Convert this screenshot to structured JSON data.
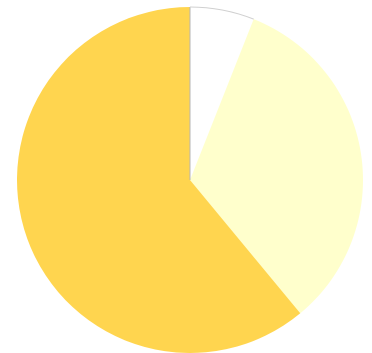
{
  "chart_data": {
    "type": "pie",
    "start_angle": "12 o'clock",
    "direction": "clockwise",
    "slices": [
      {
        "value": 6.0,
        "color": "#ffffff"
      },
      {
        "value": 33.0,
        "color": "#ffffcc"
      },
      {
        "value": 61.0,
        "color": "#ffd54f"
      }
    ],
    "legend": "none",
    "title": ""
  },
  "colors": {
    "background": "#ffffff",
    "slice_stroke": "#b5b5b5"
  }
}
